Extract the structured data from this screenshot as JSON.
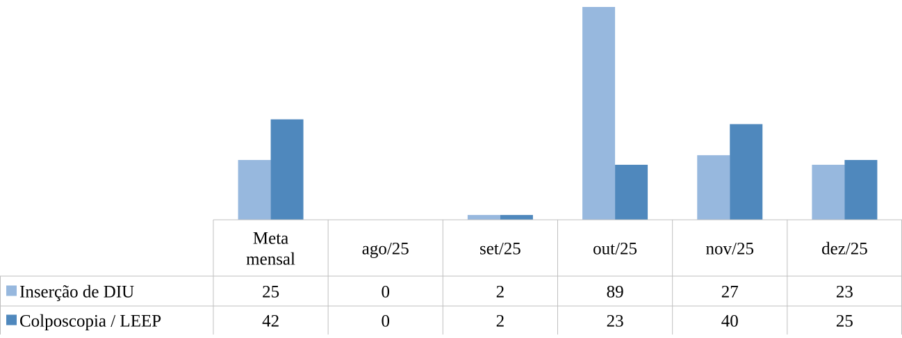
{
  "chart_data": {
    "type": "bar",
    "categories": [
      [
        "Meta",
        "mensal"
      ],
      [
        "ago/25"
      ],
      [
        "set/25"
      ],
      [
        "out/25"
      ],
      [
        "nov/25"
      ],
      [
        "dez/25"
      ]
    ],
    "series": [
      {
        "name": "Inserção de DIU",
        "values": [
          25,
          0,
          2,
          89,
          27,
          23
        ],
        "color": "#97B8DE"
      },
      {
        "name": "Colposcopia / LEEP",
        "values": [
          42,
          0,
          2,
          23,
          40,
          25
        ],
        "color": "#4F88BD"
      }
    ],
    "ylim": [
      0,
      89
    ],
    "data_table": true,
    "legend_in_table": true,
    "grid": false,
    "title": "",
    "xlabel": "",
    "ylabel": ""
  }
}
